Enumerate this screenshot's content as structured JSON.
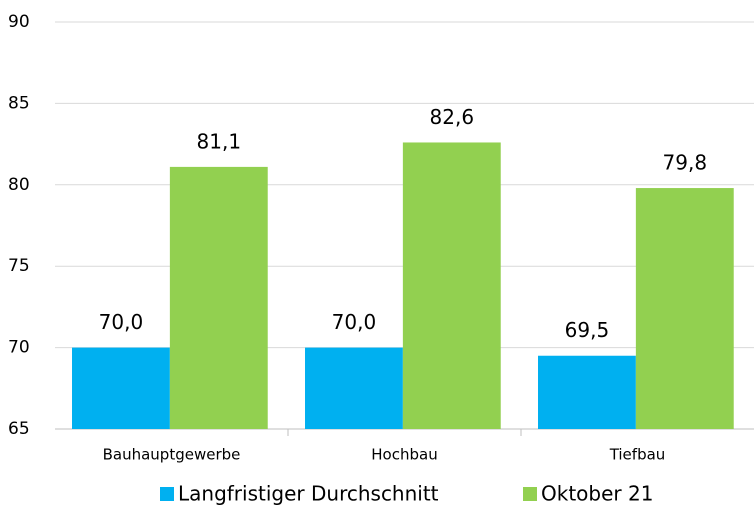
{
  "chart_data": {
    "type": "bar",
    "categories": [
      "Bauhauptgewerbe",
      "Hochbau",
      "Tiefbau"
    ],
    "series": [
      {
        "name": "Langfristiger Durchschnitt",
        "color": "#00b0f0",
        "values": [
          70.0,
          70.0,
          69.5
        ],
        "value_labels": [
          "70,0",
          "70,0",
          "69,5"
        ]
      },
      {
        "name": "Oktober 21",
        "color": "#92d050",
        "values": [
          81.1,
          82.6,
          79.8
        ],
        "value_labels": [
          "81,1",
          "82,6",
          "79,8"
        ]
      }
    ],
    "ylim": [
      65,
      90
    ],
    "yticks": [
      65,
      70,
      75,
      80,
      85,
      90
    ],
    "grid": true,
    "legend": "bottom"
  }
}
